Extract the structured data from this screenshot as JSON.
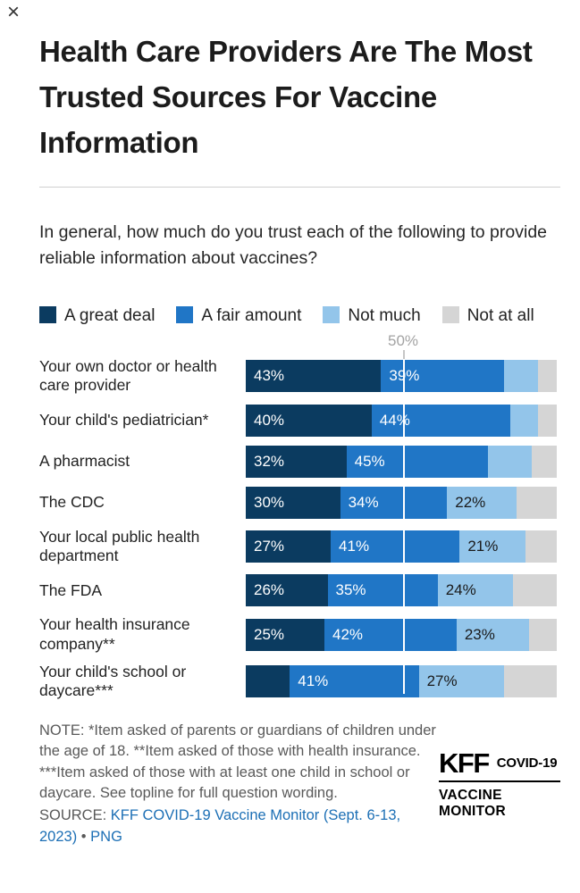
{
  "close_label": "×",
  "title": "Health Care Providers Are The Most Trusted Sources For Vaccine Information",
  "question": "In general, how much do you trust each of the following to provide reliable information about vaccines?",
  "legend": [
    {
      "label": "A great deal",
      "color": "#0b3b60"
    },
    {
      "label": "A fair amount",
      "color": "#2076c6"
    },
    {
      "label": "Not much",
      "color": "#93c5ea"
    },
    {
      "label": "Not at all",
      "color": "#d5d5d5"
    }
  ],
  "axis": {
    "gridline_label": "50%",
    "gridline_value": 50,
    "max": 100
  },
  "chart_data": {
    "type": "bar",
    "orientation": "horizontal",
    "stacked": true,
    "title": "Health Care Providers Are The Most Trusted Sources For Vaccine Information",
    "xlim": [
      0,
      100
    ],
    "gridline": 50,
    "legend_position": "top",
    "categories": [
      "Your own doctor or health care provider",
      "Your child's pediatrician*",
      "A pharmacist",
      "The CDC",
      "Your local public health department",
      "The FDA",
      "Your health insurance company**",
      "Your child's school or daycare***"
    ],
    "series": [
      {
        "name": "A great deal",
        "color": "#0b3b60",
        "label_color": "#ffffff",
        "values": [
          43,
          40,
          32,
          30,
          27,
          26,
          25,
          14
        ],
        "labels": [
          "43%",
          "40%",
          "32%",
          "30%",
          "27%",
          "26%",
          "25%",
          ""
        ]
      },
      {
        "name": "A fair amount",
        "color": "#2076c6",
        "label_color": "#ffffff",
        "values": [
          39,
          44,
          45,
          34,
          41,
          35,
          42,
          41
        ],
        "labels": [
          "39%",
          "44%",
          "45%",
          "34%",
          "41%",
          "35%",
          "42%",
          "41%"
        ]
      },
      {
        "name": "Not much",
        "color": "#93c5ea",
        "label_color": "#1a1a1a",
        "values": [
          11,
          9,
          14,
          22,
          21,
          24,
          23,
          27
        ],
        "labels": [
          "",
          "",
          "",
          "22%",
          "21%",
          "24%",
          "23%",
          "27%"
        ]
      },
      {
        "name": "Not at all",
        "color": "#d5d5d5",
        "label_color": "#1a1a1a",
        "values": [
          6,
          6,
          8,
          13,
          10,
          14,
          9,
          17
        ],
        "labels": [
          "",
          "",
          "",
          "",
          "",
          "",
          "",
          ""
        ]
      }
    ]
  },
  "note": "NOTE: *Item asked of parents or guardians of children under the age of 18. **Item asked of those with health insurance. ***Item asked of those with at least one child in school or daycare. See topline for full question wording.",
  "source": {
    "prefix": "SOURCE: ",
    "link": "KFF COVID-19 Vaccine Monitor (Sept. 6-13, 2023)",
    "separator": " • ",
    "download": "PNG"
  },
  "logo": {
    "kff": "KFF",
    "covid": "COVID-19",
    "monitor": "VACCINE MONITOR"
  }
}
